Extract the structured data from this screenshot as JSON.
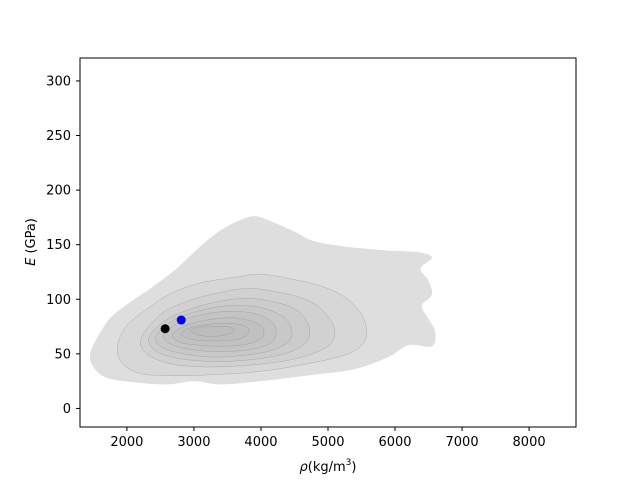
{
  "chart_data": {
    "type": "scatter",
    "title": "",
    "xlabel": "ρ (kg/m3)",
    "xlabel_parts": {
      "symbol": "ρ",
      "unit_prefix": "(kg/m",
      "superscript": "3",
      "unit_suffix": ")"
    },
    "ylabel": "E (GPa)",
    "ylabel_parts": {
      "symbol": "E",
      "unit": " (GPa)"
    },
    "xlim": [
      1300,
      8700
    ],
    "ylim": [
      -17,
      321
    ],
    "xticks": [
      2000,
      3000,
      4000,
      5000,
      6000,
      7000,
      8000
    ],
    "yticks": [
      0,
      50,
      100,
      150,
      200,
      250,
      300
    ],
    "grid": false,
    "density_contours": {
      "fill_color": "#b0b0b0",
      "levels": [
        [
          [
            1460,
            52
          ],
          [
            1500,
            38
          ],
          [
            1700,
            28
          ],
          [
            2100,
            24
          ],
          [
            2600,
            22
          ],
          [
            3000,
            25
          ],
          [
            3400,
            22
          ],
          [
            4000,
            25
          ],
          [
            4800,
            31
          ],
          [
            5400,
            36
          ],
          [
            5900,
            47
          ],
          [
            6200,
            58
          ],
          [
            6550,
            57
          ],
          [
            6600,
            70
          ],
          [
            6500,
            82
          ],
          [
            6400,
            94
          ],
          [
            6550,
            104
          ],
          [
            6500,
            117
          ],
          [
            6380,
            128
          ],
          [
            6550,
            138
          ],
          [
            6350,
            143
          ],
          [
            5800,
            145
          ],
          [
            5300,
            148
          ],
          [
            4800,
            153
          ],
          [
            4500,
            162
          ],
          [
            4200,
            170
          ],
          [
            3900,
            176
          ],
          [
            3600,
            170
          ],
          [
            3300,
            159
          ],
          [
            3000,
            143
          ],
          [
            2700,
            126
          ],
          [
            2350,
            110
          ],
          [
            1950,
            93
          ],
          [
            1700,
            79
          ]
        ],
        [
          [
            1860,
            58
          ],
          [
            1920,
            42
          ],
          [
            2200,
            32
          ],
          [
            2700,
            30
          ],
          [
            3300,
            31
          ],
          [
            4000,
            34
          ],
          [
            4700,
            41
          ],
          [
            5300,
            50
          ],
          [
            5550,
            62
          ],
          [
            5550,
            80
          ],
          [
            5400,
            94
          ],
          [
            5200,
            104
          ],
          [
            4900,
            112
          ],
          [
            4500,
            118
          ],
          [
            4000,
            123
          ],
          [
            3600,
            120
          ],
          [
            3100,
            115
          ],
          [
            2650,
            105
          ],
          [
            2300,
            91
          ],
          [
            2000,
            76
          ]
        ],
        [
          [
            2210,
            64
          ],
          [
            2300,
            50
          ],
          [
            2650,
            41
          ],
          [
            3200,
            38
          ],
          [
            3900,
            40
          ],
          [
            4550,
            46
          ],
          [
            5000,
            57
          ],
          [
            5100,
            72
          ],
          [
            4950,
            88
          ],
          [
            4700,
            99
          ],
          [
            4300,
            106
          ],
          [
            3800,
            110
          ],
          [
            3300,
            105
          ],
          [
            2850,
            97
          ],
          [
            2500,
            86
          ]
        ],
        [
          [
            2330,
            65
          ],
          [
            2420,
            53
          ],
          [
            2750,
            46
          ],
          [
            3300,
            43
          ],
          [
            3900,
            45
          ],
          [
            4400,
            51
          ],
          [
            4680,
            61
          ],
          [
            4720,
            74
          ],
          [
            4580,
            88
          ],
          [
            4300,
            96
          ],
          [
            3800,
            101
          ],
          [
            3300,
            97
          ],
          [
            2900,
            90
          ],
          [
            2560,
            80
          ]
        ],
        [
          [
            2430,
            66
          ],
          [
            2520,
            56
          ],
          [
            2850,
            50
          ],
          [
            3300,
            47
          ],
          [
            3800,
            49
          ],
          [
            4200,
            54
          ],
          [
            4440,
            63
          ],
          [
            4440,
            76
          ],
          [
            4280,
            86
          ],
          [
            3950,
            93
          ],
          [
            3500,
            94
          ],
          [
            3050,
            89
          ],
          [
            2700,
            81
          ]
        ],
        [
          [
            2550,
            67
          ],
          [
            2650,
            59
          ],
          [
            2950,
            54
          ],
          [
            3400,
            52
          ],
          [
            3850,
            54
          ],
          [
            4150,
            60
          ],
          [
            4230,
            70
          ],
          [
            4150,
            80
          ],
          [
            3900,
            87
          ],
          [
            3500,
            89
          ],
          [
            3050,
            85
          ],
          [
            2750,
            78
          ]
        ],
        [
          [
            2680,
            68
          ],
          [
            2780,
            61
          ],
          [
            3050,
            58
          ],
          [
            3450,
            57
          ],
          [
            3800,
            59
          ],
          [
            4020,
            65
          ],
          [
            4030,
            73
          ],
          [
            3900,
            79
          ],
          [
            3600,
            83
          ],
          [
            3200,
            81
          ],
          [
            2880,
            76
          ]
        ],
        [
          [
            2810,
            69
          ],
          [
            2920,
            64
          ],
          [
            3150,
            62
          ],
          [
            3450,
            62
          ],
          [
            3700,
            64
          ],
          [
            3820,
            70
          ],
          [
            3780,
            75
          ],
          [
            3550,
            78
          ],
          [
            3200,
            77
          ],
          [
            2950,
            74
          ]
        ],
        [
          [
            2960,
            71
          ],
          [
            3080,
            67
          ],
          [
            3300,
            66
          ],
          [
            3520,
            68
          ],
          [
            3600,
            72
          ],
          [
            3500,
            75
          ],
          [
            3250,
            75
          ],
          [
            3030,
            74
          ]
        ]
      ]
    },
    "points": [
      {
        "x": 2570,
        "y": 73,
        "color": "#000000"
      },
      {
        "x": 2810,
        "y": 81,
        "color": "#0000ff"
      }
    ]
  }
}
